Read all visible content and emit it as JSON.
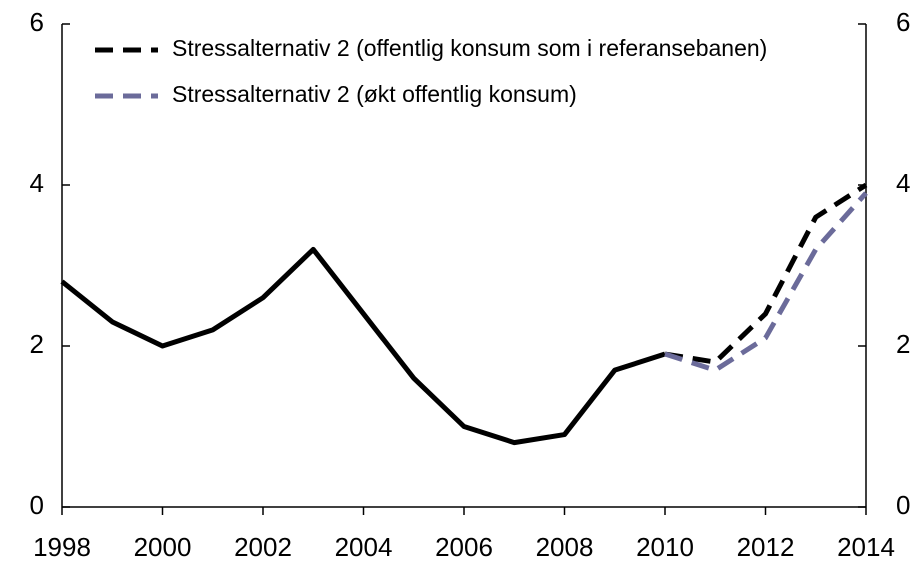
{
  "chart_data": {
    "type": "line",
    "x": [
      1998,
      1999,
      2000,
      2001,
      2002,
      2003,
      2004,
      2005,
      2006,
      2007,
      2008,
      2009,
      2010,
      2011,
      2012,
      2013,
      2014
    ],
    "series": [
      {
        "color": "#000000",
        "dash": false,
        "values": [
          2.8,
          2.3,
          2.0,
          2.2,
          2.6,
          3.2,
          2.4,
          1.6,
          1.0,
          0.8,
          0.9,
          1.7,
          1.9,
          null,
          null,
          null,
          null
        ]
      },
      {
        "name": "Stressalternativ 2 (offentlig konsum som i referansebanen)",
        "color": "#000000",
        "dash": true,
        "values": [
          null,
          null,
          null,
          null,
          null,
          null,
          null,
          null,
          null,
          null,
          null,
          null,
          1.9,
          1.8,
          2.4,
          3.6,
          4.0
        ]
      },
      {
        "name": "Stressalternativ 2 (økt offentlig konsum)",
        "color": "#6b6b9a",
        "dash": true,
        "values": [
          null,
          null,
          null,
          null,
          null,
          null,
          null,
          null,
          null,
          null,
          null,
          null,
          1.9,
          1.7,
          2.1,
          3.2,
          3.9
        ]
      }
    ],
    "xlim": [
      1998,
      2014
    ],
    "xticks": [
      1998,
      2000,
      2002,
      2004,
      2006,
      2008,
      2010,
      2012,
      2014
    ],
    "ylim": [
      0,
      6
    ],
    "yticks": [
      0,
      2,
      4,
      6
    ],
    "y2lim": [
      0,
      6
    ],
    "y2ticks": [
      0,
      2,
      4,
      6
    ],
    "grid": false,
    "legend": "upper left"
  }
}
